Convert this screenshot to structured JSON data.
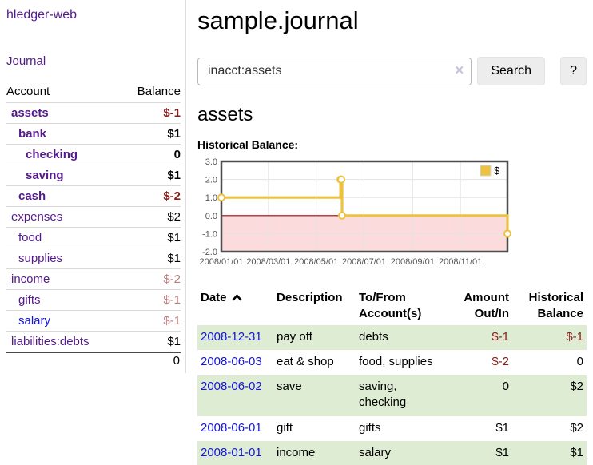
{
  "app": {
    "title": "hledger-web"
  },
  "colors": {
    "link_purple": "#551a8b",
    "link_blue": "#1414dd",
    "negative": "#84201c",
    "negative_muted": "#b97d7c",
    "row_stripe": "#deecd4",
    "chart_line": "#edc240",
    "chart_negative_fill": "#fbdbdb",
    "chart_zero_line": "#a40000",
    "chart_grid": "#e3e3e3",
    "chart_border": "#4d4d4d",
    "chart_tick_text": "#545454"
  },
  "sidebar": {
    "journal_link": "Journal",
    "table": {
      "account_header": "Account",
      "balance_header": "Balance",
      "rows": [
        {
          "name": "assets",
          "depth": 1,
          "balance": "$-1",
          "bold": true,
          "balance_class": "neg"
        },
        {
          "name": "bank",
          "depth": 2,
          "balance": "$1",
          "bold": true,
          "balance_class": ""
        },
        {
          "name": "checking",
          "depth": 3,
          "balance": "0",
          "bold": true,
          "balance_class": ""
        },
        {
          "name": "saving",
          "depth": 3,
          "balance": "$1",
          "bold": true,
          "balance_class": ""
        },
        {
          "name": "cash",
          "depth": 2,
          "balance": "$-2",
          "bold": true,
          "balance_class": "neg"
        },
        {
          "name": "expenses",
          "depth": 1,
          "balance": "$2",
          "bold": false,
          "balance_class": ""
        },
        {
          "name": "food",
          "depth": 2,
          "balance": "$1",
          "bold": false,
          "balance_class": ""
        },
        {
          "name": "supplies",
          "depth": 2,
          "balance": "$1",
          "bold": false,
          "balance_class": ""
        },
        {
          "name": "income",
          "depth": 1,
          "balance": "$-2",
          "bold": false,
          "balance_class": "neg-muted"
        },
        {
          "name": "gifts",
          "depth": 2,
          "balance": "$-1",
          "bold": false,
          "balance_class": "neg-muted"
        },
        {
          "name": "salary",
          "depth": 2,
          "balance": "$-1",
          "bold": false,
          "balance_class": "neg-muted",
          "link_class": "blue"
        },
        {
          "name": "liabilities:debts",
          "depth": 1,
          "balance": "$1",
          "bold": false,
          "balance_class": ""
        }
      ],
      "total": "0"
    }
  },
  "header": {
    "title": "sample.journal"
  },
  "search": {
    "query": "inacct:assets",
    "clear_icon": "×",
    "button": "Search",
    "help_button": "?"
  },
  "account_page": {
    "heading": "assets",
    "chart_label": "Historical Balance:"
  },
  "chart_data": {
    "type": "line",
    "title": "Historical Balance",
    "style": "steps",
    "series": [
      {
        "name": "$",
        "color": "#edc240",
        "points": [
          [
            "2008-01-01",
            1
          ],
          [
            "2008-06-01",
            2
          ],
          [
            "2008-06-02",
            2
          ],
          [
            "2008-06-03",
            0
          ],
          [
            "2008-12-31",
            -1
          ]
        ]
      }
    ],
    "xmin": "2008-01-01",
    "xmax": "2008-12-31",
    "ylim": [
      -2,
      3
    ],
    "yticks": [
      3,
      2,
      1,
      0,
      -1,
      -2
    ],
    "xticks": [
      "2008/01/01",
      "2008/03/01",
      "2008/05/01",
      "2008/07/01",
      "2008/09/01",
      "2008/11/01"
    ],
    "grid": true,
    "legend": "$",
    "legend_position": "top-right",
    "negative_region_shaded": true
  },
  "register": {
    "headers": [
      {
        "key": "date",
        "label": "Date",
        "align": "left",
        "sorted": "asc"
      },
      {
        "key": "description",
        "label": "Description",
        "align": "left"
      },
      {
        "key": "accounts",
        "label": "To/From Account(s)",
        "align": "left"
      },
      {
        "key": "amount",
        "label": "Amount Out/In",
        "align": "right"
      },
      {
        "key": "balance",
        "label": "Historical Balance",
        "align": "right"
      }
    ],
    "rows": [
      {
        "date": "2008-12-31",
        "description": "pay off",
        "accounts": "debts",
        "amount": "$-1",
        "amount_class": "neg",
        "balance": "$-1",
        "balance_class": "neg",
        "shaded": true
      },
      {
        "date": "2008-06-03",
        "description": "eat & shop",
        "accounts": "food, supplies",
        "amount": "$-2",
        "amount_class": "neg",
        "balance": "0",
        "balance_class": "",
        "shaded": false
      },
      {
        "date": "2008-06-02",
        "description": "save",
        "accounts": "saving, checking",
        "amount": "0",
        "amount_class": "",
        "balance": "$2",
        "balance_class": "",
        "shaded": true
      },
      {
        "date": "2008-06-01",
        "description": "gift",
        "accounts": "gifts",
        "amount": "$1",
        "amount_class": "",
        "balance": "$2",
        "balance_class": "",
        "shaded": false
      },
      {
        "date": "2008-01-01",
        "description": "income",
        "accounts": "salary",
        "amount": "$1",
        "amount_class": "",
        "balance": "$1",
        "balance_class": "",
        "shaded": true
      }
    ]
  }
}
